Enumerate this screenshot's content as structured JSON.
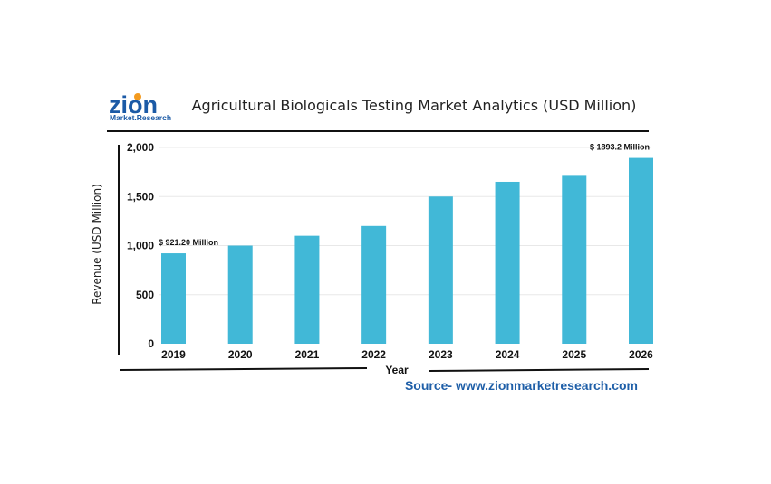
{
  "logo": {
    "main": "zion",
    "sub": "Market.Research"
  },
  "chart_data": {
    "type": "bar",
    "title": "Agricultural Biologicals Testing Market Analytics (USD Million)",
    "xlabel": "Year",
    "ylabel": "Revenue (USD Million)",
    "categories": [
      "2019",
      "2020",
      "2021",
      "2022",
      "2023",
      "2024",
      "2025",
      "2026"
    ],
    "values": [
      921.2,
      1000,
      1100,
      1200,
      1500,
      1650,
      1720,
      1893.2
    ],
    "ylim": [
      0,
      2000
    ],
    "yticks": [
      "0",
      "500",
      "1,000",
      "1,500",
      "2,000"
    ],
    "annotations": [
      "$ 921.20 Million",
      "$ 1893.2 Million"
    ],
    "bar_color": "#41b8d7",
    "grid": true,
    "legend": "none",
    "source": "Source- www.zionmarketresearch.com"
  }
}
